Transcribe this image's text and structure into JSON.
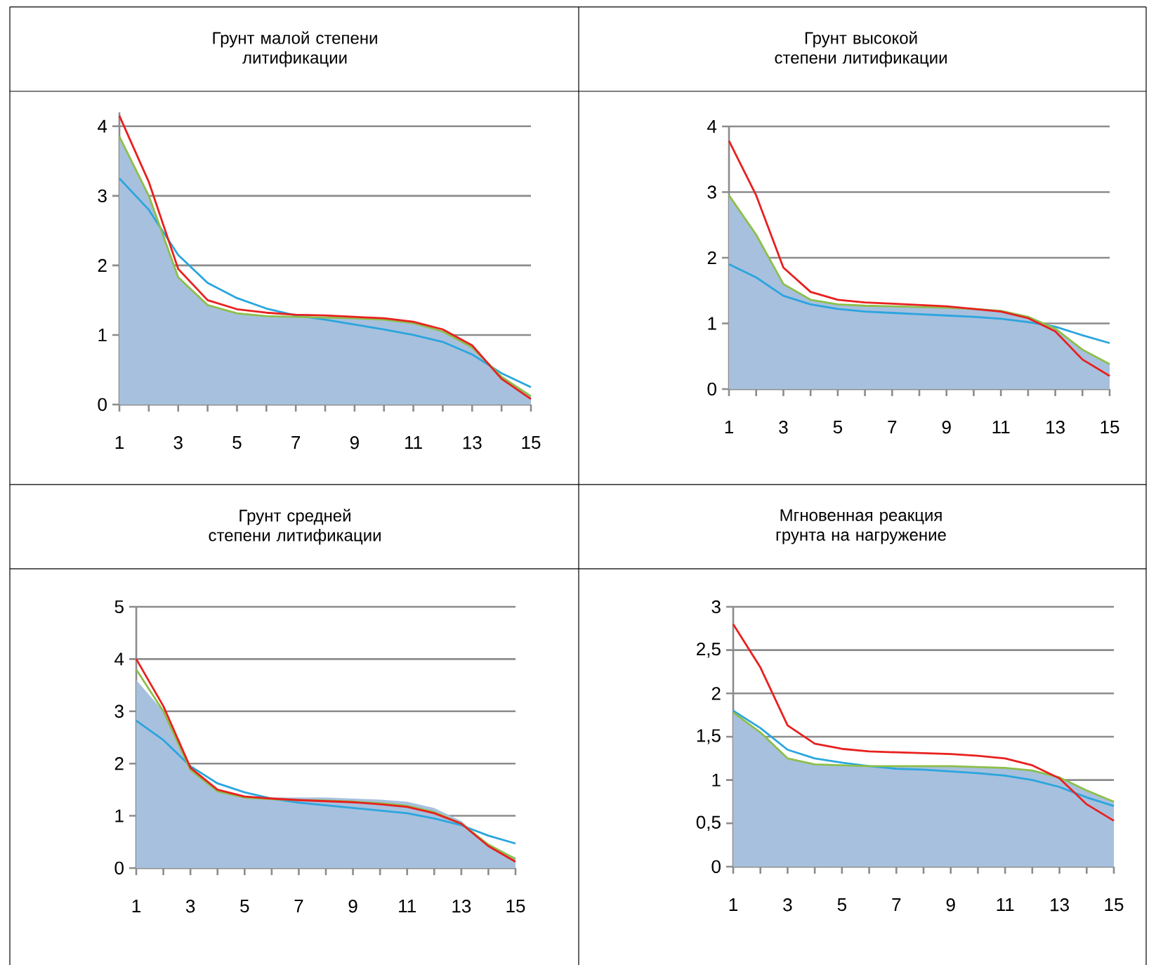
{
  "chart_data": [
    {
      "type": "line",
      "title": "Грунт малой степени литификации",
      "x": [
        1,
        2,
        3,
        4,
        5,
        6,
        7,
        8,
        9,
        10,
        11,
        12,
        13,
        14,
        15
      ],
      "xlim": [
        1,
        15
      ],
      "xticks": [
        1,
        {
          "value": 2,
          "label": null
        },
        3,
        {
          "value": 4,
          "label": null
        },
        5,
        {
          "value": 6,
          "label": null
        },
        7,
        {
          "value": 8,
          "label": null
        },
        9,
        {
          "value": 10,
          "label": null
        },
        11,
        {
          "value": 12,
          "label": null
        },
        13,
        {
          "value": 14,
          "label": null
        },
        15
      ],
      "ylim": [
        0,
        4.2
      ],
      "yticks": [
        0,
        1,
        2,
        3,
        4
      ],
      "grid": "y",
      "series": [
        {
          "type": "area",
          "color": "#a7c0de",
          "values": [
            3.85,
            3.0,
            1.83,
            1.43,
            1.31,
            1.27,
            1.26,
            1.25,
            1.24,
            1.22,
            1.17,
            1.05,
            0.82,
            0.4,
            0.12
          ]
        },
        {
          "type": "line",
          "color": "#2ba5de",
          "values": [
            3.25,
            2.8,
            2.15,
            1.75,
            1.53,
            1.38,
            1.28,
            1.22,
            1.15,
            1.08,
            1.0,
            0.9,
            0.72,
            0.45,
            0.25
          ]
        },
        {
          "type": "line",
          "color": "#8cbf4a",
          "values": [
            3.85,
            3.0,
            1.83,
            1.43,
            1.31,
            1.27,
            1.26,
            1.25,
            1.24,
            1.22,
            1.17,
            1.05,
            0.82,
            0.4,
            0.12
          ]
        },
        {
          "type": "line",
          "color": "#e8201f",
          "values": [
            4.15,
            3.2,
            1.95,
            1.5,
            1.37,
            1.32,
            1.29,
            1.28,
            1.26,
            1.24,
            1.19,
            1.08,
            0.85,
            0.37,
            0.08
          ]
        }
      ]
    },
    {
      "type": "line",
      "title": "Грунт высокой степени литификации",
      "x": [
        1,
        2,
        3,
        4,
        5,
        6,
        7,
        8,
        9,
        10,
        11,
        12,
        13,
        14,
        15
      ],
      "xlim": [
        1,
        15
      ],
      "xticks": [
        1,
        {
          "value": 2,
          "label": null
        },
        3,
        {
          "value": 4,
          "label": null
        },
        5,
        {
          "value": 6,
          "label": null
        },
        7,
        {
          "value": 8,
          "label": null
        },
        9,
        {
          "value": 10,
          "label": null
        },
        11,
        {
          "value": 12,
          "label": null
        },
        13,
        {
          "value": 14,
          "label": null
        },
        15
      ],
      "ylim": [
        0,
        4
      ],
      "yticks": [
        0,
        1,
        2,
        3,
        4
      ],
      "grid": "y",
      "series": [
        {
          "type": "area",
          "color": "#a7c0de",
          "values": [
            2.95,
            2.35,
            1.6,
            1.36,
            1.29,
            1.27,
            1.26,
            1.25,
            1.24,
            1.22,
            1.19,
            1.1,
            0.92,
            0.6,
            0.38
          ]
        },
        {
          "type": "line",
          "color": "#2ba5de",
          "values": [
            1.9,
            1.7,
            1.42,
            1.29,
            1.22,
            1.18,
            1.16,
            1.14,
            1.12,
            1.1,
            1.07,
            1.02,
            0.95,
            0.82,
            0.7
          ]
        },
        {
          "type": "line",
          "color": "#8cbf4a",
          "values": [
            2.95,
            2.35,
            1.6,
            1.36,
            1.29,
            1.27,
            1.26,
            1.25,
            1.24,
            1.22,
            1.19,
            1.1,
            0.92,
            0.6,
            0.38
          ]
        },
        {
          "type": "line",
          "color": "#e8201f",
          "values": [
            3.78,
            2.95,
            1.85,
            1.48,
            1.36,
            1.32,
            1.3,
            1.28,
            1.26,
            1.22,
            1.18,
            1.08,
            0.88,
            0.45,
            0.2
          ]
        }
      ]
    },
    {
      "type": "line",
      "title": "Грунт средней степени литификации",
      "x": [
        1,
        2,
        3,
        4,
        5,
        6,
        7,
        8,
        9,
        10,
        11,
        12,
        13,
        14,
        15
      ],
      "xlim": [
        1,
        15
      ],
      "xticks": [
        1,
        {
          "value": 2,
          "label": null
        },
        3,
        {
          "value": 4,
          "label": null
        },
        5,
        {
          "value": 6,
          "label": null
        },
        7,
        {
          "value": 8,
          "label": null
        },
        9,
        {
          "value": 10,
          "label": null
        },
        11,
        {
          "value": 12,
          "label": null
        },
        13,
        {
          "value": 14,
          "label": null
        },
        15
      ],
      "ylim": [
        0,
        5
      ],
      "yticks": [
        0,
        1,
        2,
        3,
        4,
        5
      ],
      "grid": "y",
      "series": [
        {
          "type": "area",
          "color": "#a7c0de",
          "values": [
            3.6,
            3.0,
            1.95,
            1.5,
            1.38,
            1.35,
            1.35,
            1.35,
            1.33,
            1.31,
            1.27,
            1.15,
            0.9,
            0.45,
            0.2
          ]
        },
        {
          "type": "line",
          "color": "#2ba5de",
          "values": [
            2.82,
            2.45,
            1.95,
            1.62,
            1.45,
            1.33,
            1.25,
            1.2,
            1.15,
            1.1,
            1.05,
            0.95,
            0.82,
            0.62,
            0.47
          ]
        },
        {
          "type": "line",
          "color": "#8cbf4a",
          "values": [
            3.8,
            3.0,
            1.88,
            1.47,
            1.35,
            1.32,
            1.3,
            1.29,
            1.27,
            1.24,
            1.19,
            1.07,
            0.85,
            0.45,
            0.17
          ]
        },
        {
          "type": "line",
          "color": "#e8201f",
          "values": [
            4.0,
            3.1,
            1.92,
            1.5,
            1.37,
            1.33,
            1.3,
            1.28,
            1.26,
            1.22,
            1.17,
            1.05,
            0.85,
            0.42,
            0.12
          ]
        }
      ]
    },
    {
      "type": "line",
      "title": "Мгновенная реакция грунта на нагружение",
      "x": [
        1,
        2,
        3,
        4,
        5,
        6,
        7,
        8,
        9,
        10,
        11,
        12,
        13,
        14,
        15
      ],
      "xlim": [
        1,
        15
      ],
      "xticks": [
        1,
        {
          "value": 2,
          "label": null
        },
        3,
        {
          "value": 4,
          "label": null
        },
        5,
        {
          "value": 6,
          "label": null
        },
        7,
        {
          "value": 8,
          "label": null
        },
        9,
        {
          "value": 10,
          "label": null
        },
        11,
        {
          "value": 12,
          "label": null
        },
        13,
        {
          "value": 14,
          "label": null
        },
        15
      ],
      "ylim": [
        0,
        3
      ],
      "yticks": [
        0,
        {
          "value": 0.5,
          "label": "0,5"
        },
        1,
        {
          "value": 1.5,
          "label": "1,5"
        },
        2,
        {
          "value": 2.5,
          "label": "2,5"
        },
        3
      ],
      "grid": "y",
      "series": [
        {
          "type": "area",
          "color": "#a7c0de",
          "values": [
            1.78,
            1.55,
            1.25,
            1.18,
            1.17,
            1.16,
            1.16,
            1.16,
            1.16,
            1.15,
            1.14,
            1.11,
            1.03,
            0.88,
            0.75
          ]
        },
        {
          "type": "line",
          "color": "#2ba5de",
          "values": [
            1.8,
            1.6,
            1.35,
            1.25,
            1.2,
            1.16,
            1.13,
            1.12,
            1.1,
            1.08,
            1.05,
            1.0,
            0.92,
            0.8,
            0.7
          ]
        },
        {
          "type": "line",
          "color": "#8cbf4a",
          "values": [
            1.78,
            1.55,
            1.25,
            1.18,
            1.17,
            1.16,
            1.16,
            1.16,
            1.16,
            1.15,
            1.14,
            1.11,
            1.03,
            0.88,
            0.75
          ]
        },
        {
          "type": "line",
          "color": "#e8201f",
          "values": [
            2.8,
            2.3,
            1.63,
            1.42,
            1.36,
            1.33,
            1.32,
            1.31,
            1.3,
            1.28,
            1.25,
            1.17,
            1.02,
            0.72,
            0.53
          ]
        }
      ]
    }
  ]
}
